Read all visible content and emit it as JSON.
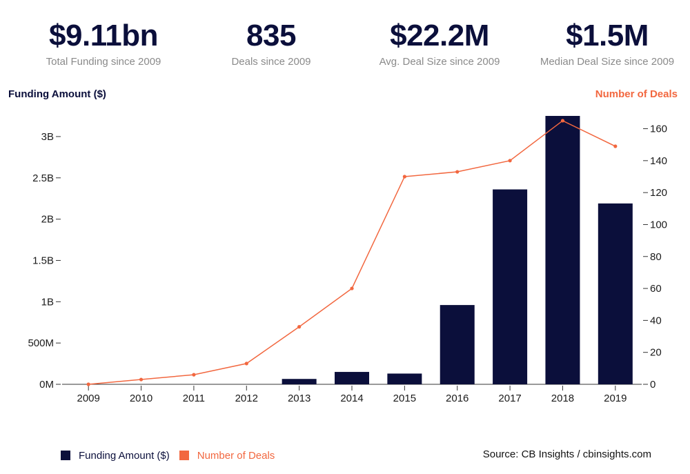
{
  "kpis": [
    {
      "value": "$9.11bn",
      "label": "Total Funding since 2009"
    },
    {
      "value": "835",
      "label": "Deals since 2009"
    },
    {
      "value": "$22.2M",
      "label": "Avg. Deal Size since 2009"
    },
    {
      "value": "$1.5M",
      "label": "Median Deal Size since 2009"
    }
  ],
  "colors": {
    "funding": "#0b0f3b",
    "deals": "#f2673f",
    "axis": "#333333",
    "muted": "#8a8a8a"
  },
  "legend": {
    "funding": "Funding Amount ($)",
    "deals": "Number of Deals"
  },
  "source": "Source: CB Insights / cbinsights.com",
  "chart_data": {
    "type": "bar",
    "categories": [
      "2009",
      "2010",
      "2011",
      "2012",
      "2013",
      "2014",
      "2015",
      "2016",
      "2017",
      "2018",
      "2019"
    ],
    "series": [
      {
        "name": "Funding Amount ($)",
        "type": "bar",
        "axis": "left",
        "values": [
          0,
          0,
          0,
          0,
          65000000,
          150000000,
          130000000,
          960000000,
          2360000000,
          3250000000,
          2190000000
        ]
      },
      {
        "name": "Number of Deals",
        "type": "line",
        "axis": "right",
        "values": [
          0,
          3,
          6,
          13,
          36,
          60,
          130,
          133,
          140,
          165,
          149
        ]
      }
    ],
    "ylabel": "Funding Amount ($)",
    "y2label": "Number of Deals",
    "ylim": [
      0,
      3250000000
    ],
    "y2lim": [
      0,
      168
    ],
    "yticks": [
      0,
      500000000,
      1000000000,
      1500000000,
      2000000000,
      2500000000,
      3000000000
    ],
    "ytick_labels": [
      "0M",
      "500M",
      "1B",
      "1.5B",
      "2B",
      "2.5B",
      "3B"
    ],
    "y2ticks": [
      0,
      20,
      40,
      60,
      80,
      100,
      120,
      140,
      160
    ],
    "y2tick_labels": [
      "0",
      "20",
      "40",
      "60",
      "80",
      "100",
      "120",
      "140",
      "160"
    ],
    "grid": false,
    "legend_position": "bottom-left"
  }
}
